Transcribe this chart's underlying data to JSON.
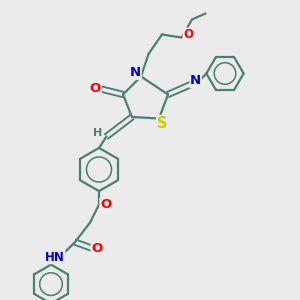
{
  "bg_color": "#ebebeb",
  "bond_color": "#4a8070",
  "bond_width": 1.6,
  "atom_colors": {
    "O": "#ff0000",
    "N": "#0000cc",
    "S": "#cccc00",
    "H": "#4a8070",
    "C": "#4a8070"
  },
  "fs": 8.5
}
